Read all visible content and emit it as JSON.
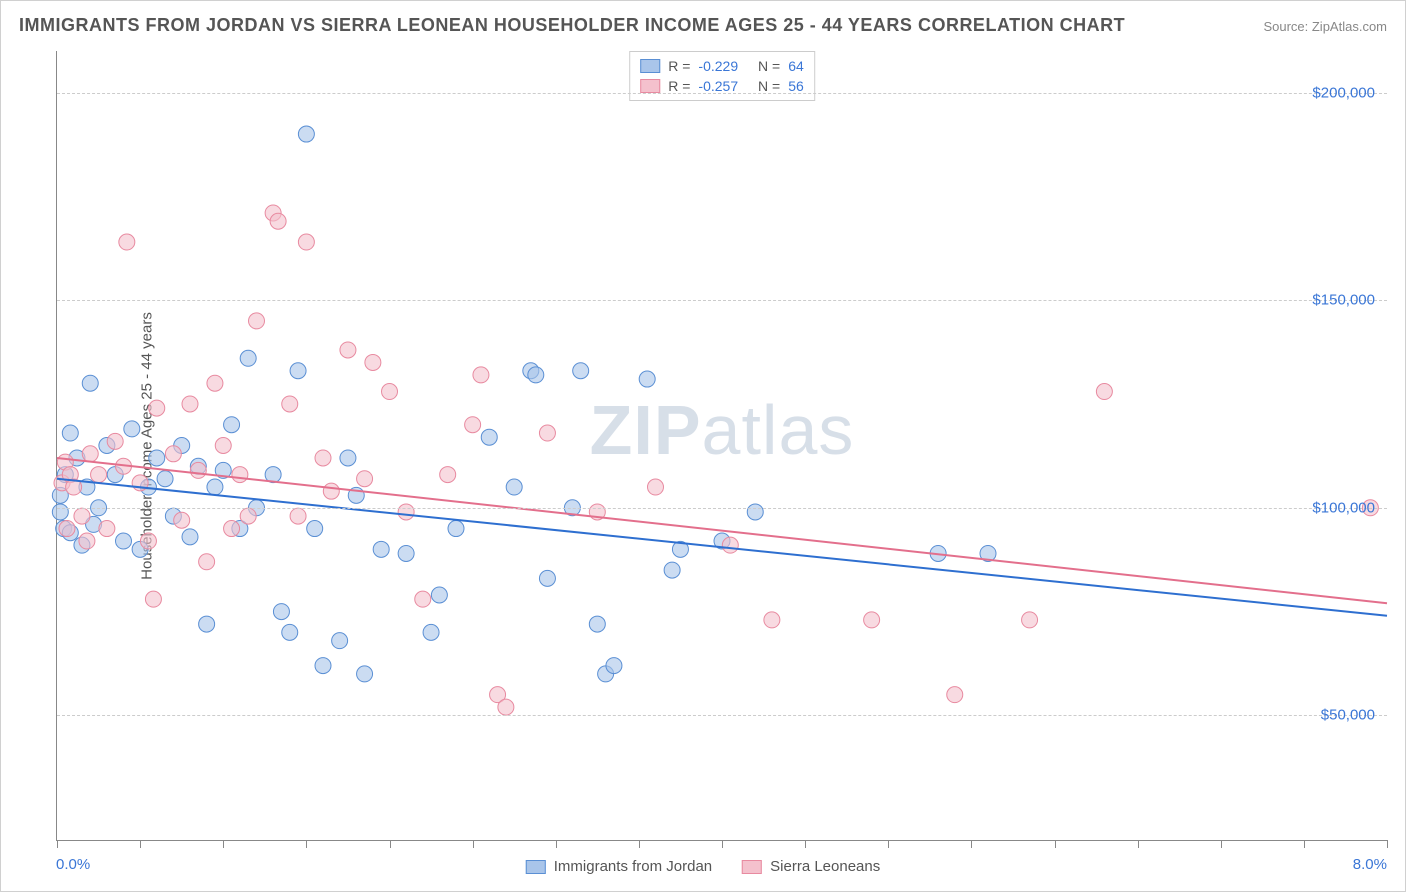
{
  "title": "IMMIGRANTS FROM JORDAN VS SIERRA LEONEAN HOUSEHOLDER INCOME AGES 25 - 44 YEARS CORRELATION CHART",
  "source": "Source: ZipAtlas.com",
  "watermark_bold": "ZIP",
  "watermark_rest": "atlas",
  "ylabel": "Householder Income Ages 25 - 44 years",
  "xaxis": {
    "min_label": "0.0%",
    "max_label": "8.0%",
    "xlim": [
      0,
      8
    ],
    "tick_positions": [
      0,
      0.5,
      1.0,
      1.5,
      2.0,
      2.5,
      3.0,
      3.5,
      4.0,
      4.5,
      5.0,
      5.5,
      6.0,
      6.5,
      7.0,
      7.5,
      8.0
    ]
  },
  "yaxis": {
    "ylim": [
      20000,
      210000
    ],
    "ticks": [
      {
        "v": 50000,
        "label": "$50,000"
      },
      {
        "v": 100000,
        "label": "$100,000"
      },
      {
        "v": 150000,
        "label": "$150,000"
      },
      {
        "v": 200000,
        "label": "$200,000"
      }
    ]
  },
  "series": [
    {
      "name": "Immigrants from Jordan",
      "R": "-0.229",
      "N": "64",
      "fill": "#a9c5ea",
      "stroke": "#5a8fd4",
      "line_color": "#2e6fd0",
      "trend": {
        "y_at_xmin": 107000,
        "y_at_xmax": 74000
      },
      "points": [
        [
          0.02,
          99000
        ],
        [
          0.02,
          103000
        ],
        [
          0.04,
          95000
        ],
        [
          0.05,
          108000
        ],
        [
          0.08,
          118000
        ],
        [
          0.08,
          94000
        ],
        [
          0.12,
          112000
        ],
        [
          0.15,
          91000
        ],
        [
          0.18,
          105000
        ],
        [
          0.2,
          130000
        ],
        [
          0.22,
          96000
        ],
        [
          0.25,
          100000
        ],
        [
          0.3,
          115000
        ],
        [
          0.35,
          108000
        ],
        [
          0.4,
          92000
        ],
        [
          0.45,
          119000
        ],
        [
          0.5,
          90000
        ],
        [
          0.55,
          105000
        ],
        [
          0.6,
          112000
        ],
        [
          0.65,
          107000
        ],
        [
          0.7,
          98000
        ],
        [
          0.75,
          115000
        ],
        [
          0.8,
          93000
        ],
        [
          0.85,
          110000
        ],
        [
          0.9,
          72000
        ],
        [
          0.95,
          105000
        ],
        [
          1.0,
          109000
        ],
        [
          1.05,
          120000
        ],
        [
          1.1,
          95000
        ],
        [
          1.15,
          136000
        ],
        [
          1.2,
          100000
        ],
        [
          1.3,
          108000
        ],
        [
          1.35,
          75000
        ],
        [
          1.4,
          70000
        ],
        [
          1.45,
          133000
        ],
        [
          1.5,
          190000
        ],
        [
          1.55,
          95000
        ],
        [
          1.6,
          62000
        ],
        [
          1.7,
          68000
        ],
        [
          1.75,
          112000
        ],
        [
          1.8,
          103000
        ],
        [
          1.85,
          60000
        ],
        [
          1.95,
          90000
        ],
        [
          2.1,
          89000
        ],
        [
          2.25,
          70000
        ],
        [
          2.3,
          79000
        ],
        [
          2.4,
          95000
        ],
        [
          2.6,
          117000
        ],
        [
          2.75,
          105000
        ],
        [
          2.85,
          133000
        ],
        [
          2.88,
          132000
        ],
        [
          2.95,
          83000
        ],
        [
          3.1,
          100000
        ],
        [
          3.15,
          133000
        ],
        [
          3.25,
          72000
        ],
        [
          3.3,
          60000
        ],
        [
          3.35,
          62000
        ],
        [
          3.55,
          131000
        ],
        [
          3.7,
          85000
        ],
        [
          3.75,
          90000
        ],
        [
          4.0,
          92000
        ],
        [
          4.2,
          99000
        ],
        [
          5.3,
          89000
        ],
        [
          5.6,
          89000
        ]
      ]
    },
    {
      "name": "Sierra Leoneans",
      "R": "-0.257",
      "N": "56",
      "fill": "#f4c1cd",
      "stroke": "#e88aa0",
      "line_color": "#e36f8c",
      "trend": {
        "y_at_xmin": 112000,
        "y_at_xmax": 77000
      },
      "points": [
        [
          0.03,
          106000
        ],
        [
          0.05,
          111000
        ],
        [
          0.06,
          95000
        ],
        [
          0.08,
          108000
        ],
        [
          0.1,
          105000
        ],
        [
          0.15,
          98000
        ],
        [
          0.18,
          92000
        ],
        [
          0.2,
          113000
        ],
        [
          0.25,
          108000
        ],
        [
          0.3,
          95000
        ],
        [
          0.35,
          116000
        ],
        [
          0.4,
          110000
        ],
        [
          0.42,
          164000
        ],
        [
          0.5,
          106000
        ],
        [
          0.55,
          92000
        ],
        [
          0.58,
          78000
        ],
        [
          0.6,
          124000
        ],
        [
          0.7,
          113000
        ],
        [
          0.75,
          97000
        ],
        [
          0.8,
          125000
        ],
        [
          0.85,
          109000
        ],
        [
          0.9,
          87000
        ],
        [
          0.95,
          130000
        ],
        [
          1.0,
          115000
        ],
        [
          1.05,
          95000
        ],
        [
          1.1,
          108000
        ],
        [
          1.15,
          98000
        ],
        [
          1.2,
          145000
        ],
        [
          1.3,
          171000
        ],
        [
          1.33,
          169000
        ],
        [
          1.4,
          125000
        ],
        [
          1.45,
          98000
        ],
        [
          1.5,
          164000
        ],
        [
          1.6,
          112000
        ],
        [
          1.65,
          104000
        ],
        [
          1.75,
          138000
        ],
        [
          1.85,
          107000
        ],
        [
          1.9,
          135000
        ],
        [
          2.0,
          128000
        ],
        [
          2.1,
          99000
        ],
        [
          2.2,
          78000
        ],
        [
          2.35,
          108000
        ],
        [
          2.5,
          120000
        ],
        [
          2.55,
          132000
        ],
        [
          2.65,
          55000
        ],
        [
          2.7,
          52000
        ],
        [
          2.95,
          118000
        ],
        [
          3.25,
          99000
        ],
        [
          3.6,
          105000
        ],
        [
          4.05,
          91000
        ],
        [
          4.3,
          73000
        ],
        [
          4.9,
          73000
        ],
        [
          5.4,
          55000
        ],
        [
          5.85,
          73000
        ],
        [
          6.3,
          128000
        ],
        [
          7.9,
          100000
        ]
      ]
    }
  ],
  "marker_radius": 8,
  "marker_opacity": 0.6,
  "line_width": 2,
  "background_color": "#ffffff",
  "grid_color": "#cccccc",
  "tick_label_color": "#3a76d6",
  "legend_labels": {
    "R": "R =",
    "N": "N ="
  }
}
